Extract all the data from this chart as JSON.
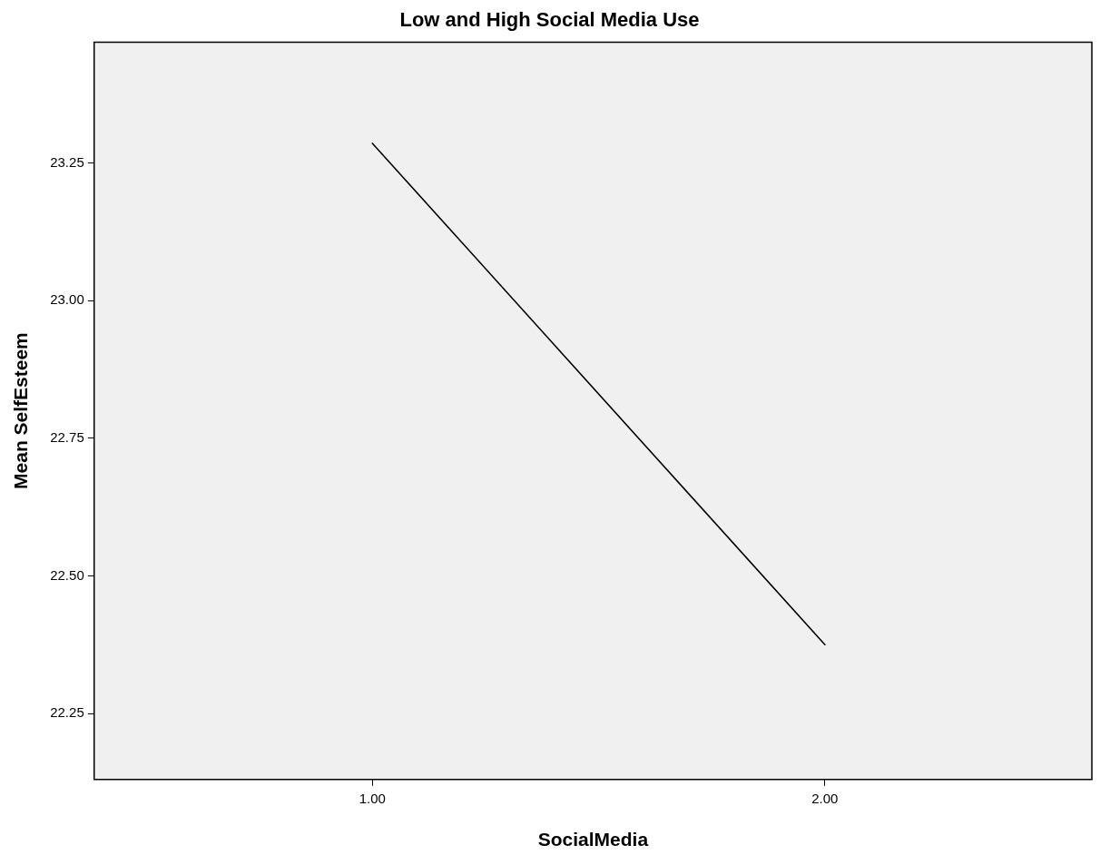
{
  "chart_data": {
    "type": "line",
    "title": "Low and High Social Media Use",
    "xlabel": "SocialMedia",
    "ylabel": "Mean SelfEsteem",
    "x": [
      1,
      2
    ],
    "series": [
      {
        "color": "#000000",
        "values": [
          23.286,
          22.375
        ]
      }
    ],
    "xlim": [
      0.385,
      2.59
    ],
    "xticks": [
      {
        "value": 1,
        "label": "1.00"
      },
      {
        "value": 2,
        "label": "2.00"
      }
    ],
    "ylim": [
      22.13,
      23.47
    ],
    "yticks": [
      {
        "value": 22.25,
        "label": "22.25"
      },
      {
        "value": 22.5,
        "label": "22.50"
      },
      {
        "value": 22.75,
        "label": "22.75"
      },
      {
        "value": 23,
        "label": "23.00"
      },
      {
        "value": 23.25,
        "label": "23.25"
      }
    ],
    "grid": false,
    "legend": false,
    "marker": "none",
    "line_style": "solid"
  }
}
